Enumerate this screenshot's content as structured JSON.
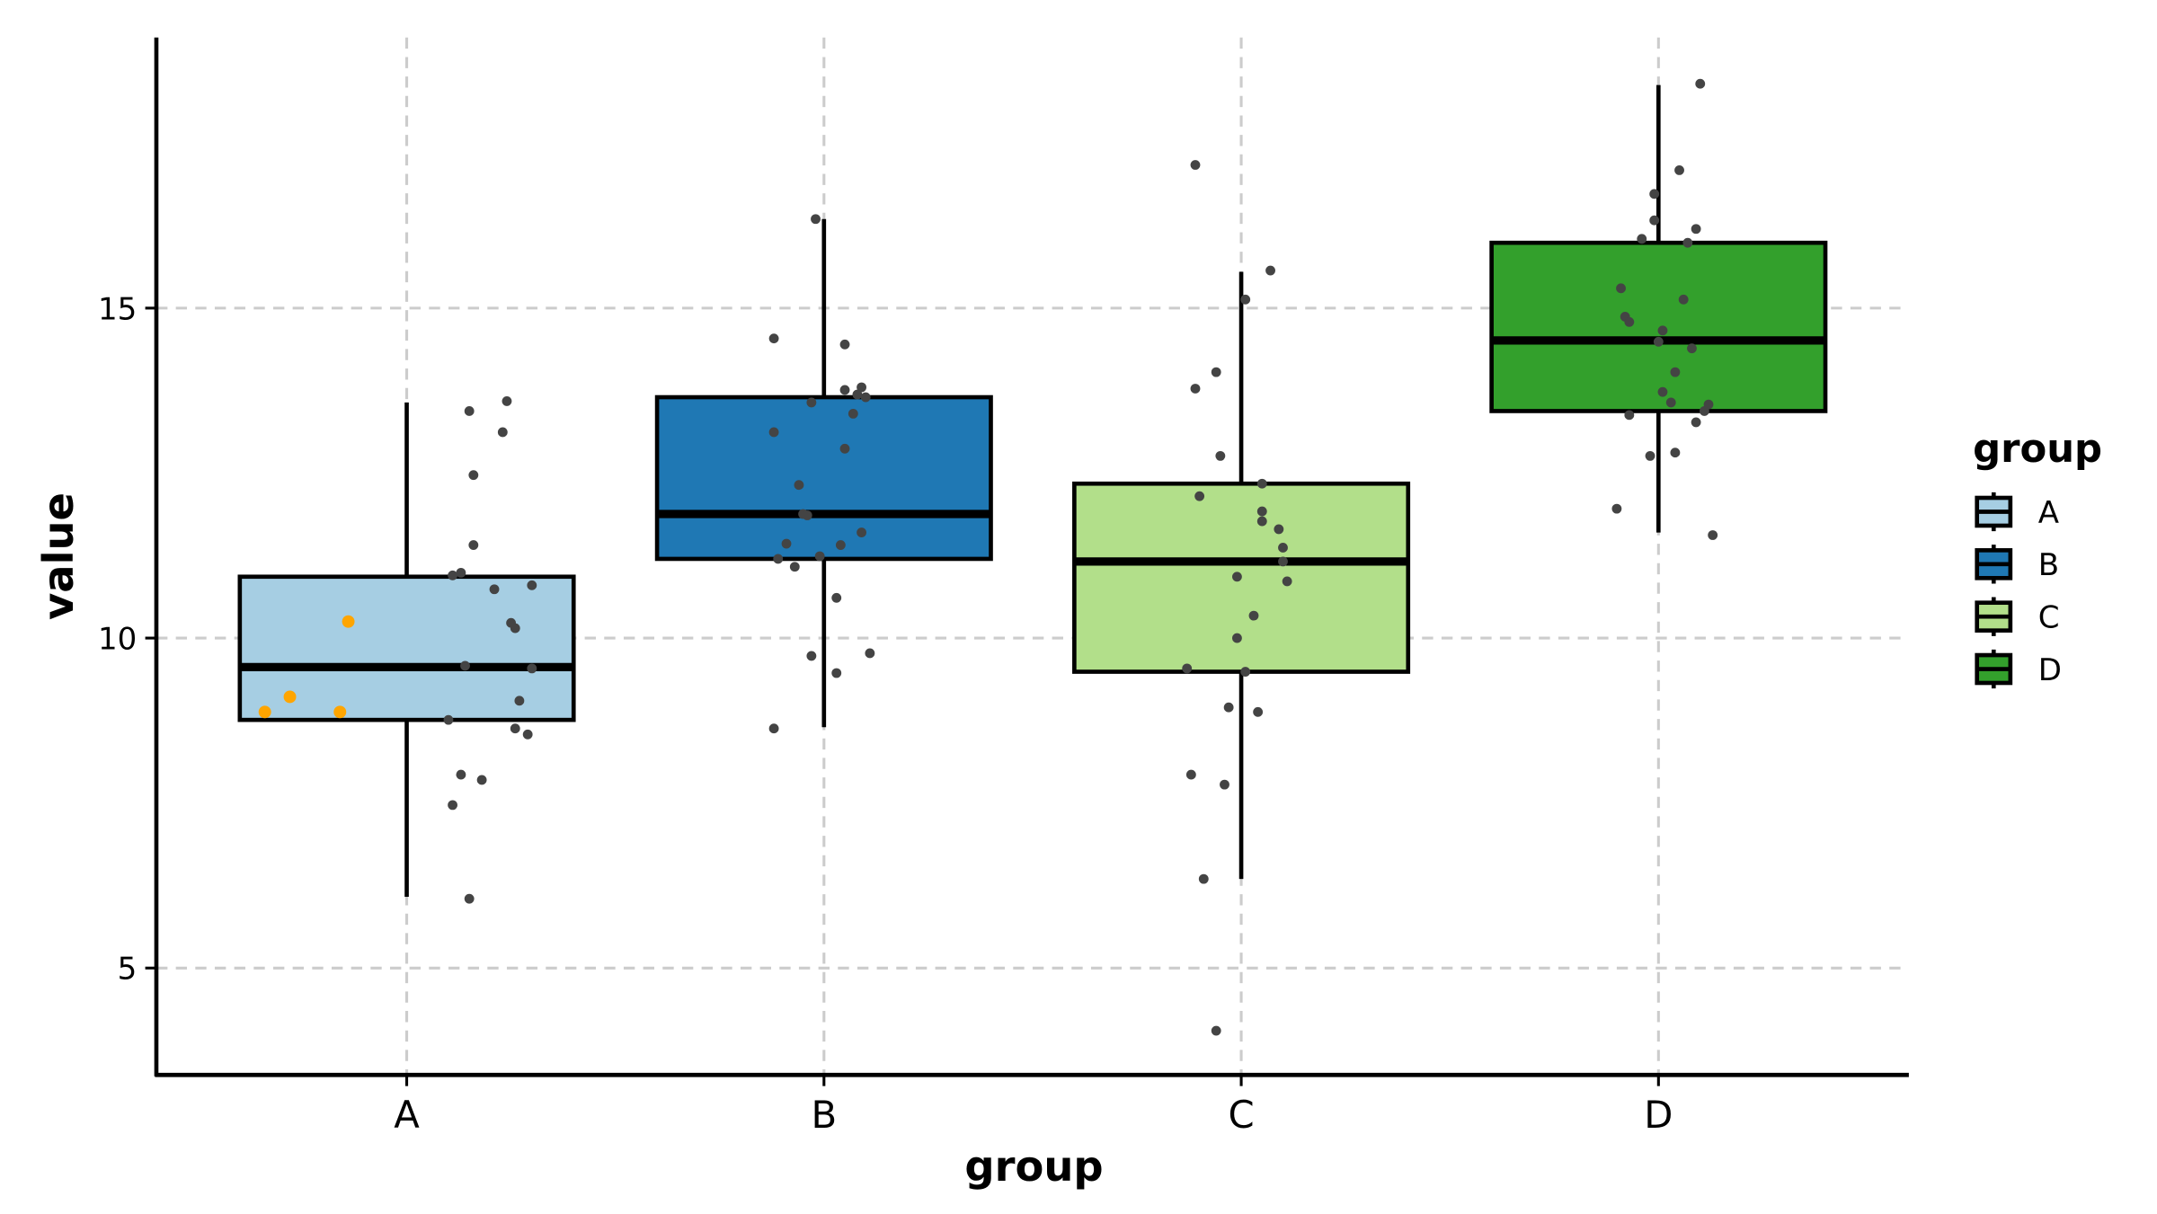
{
  "chart_data": {
    "type": "box",
    "title": "",
    "xlabel": "group",
    "ylabel": "value",
    "categories": [
      "A",
      "B",
      "C",
      "D"
    ],
    "ylim": [
      3.38,
      19.1
    ],
    "yticks": [
      5,
      10,
      15
    ],
    "grid": true,
    "legend": {
      "title": "group",
      "placement": "right",
      "entries": [
        "A",
        "B",
        "C",
        "D"
      ]
    },
    "colors": {
      "A": "#a6cee3",
      "B": "#1f78b4",
      "C": "#b2df8a",
      "D": "#33a02c",
      "points": "#444444",
      "highlight": "#ffa500"
    },
    "boxes": [
      {
        "group": "A",
        "whisker_low": 6.08,
        "q1": 8.76,
        "median": 9.56,
        "q3": 10.93,
        "whisker_high": 13.57
      },
      {
        "group": "B",
        "whisker_low": 8.65,
        "q1": 11.2,
        "median": 11.88,
        "q3": 13.65,
        "whisker_high": 16.35
      },
      {
        "group": "C",
        "whisker_low": 6.35,
        "q1": 9.49,
        "median": 11.16,
        "q3": 12.34,
        "whisker_high": 15.55
      },
      {
        "group": "D",
        "whisker_low": 11.6,
        "q1": 13.44,
        "median": 14.51,
        "q3": 15.99,
        "whisker_high": 18.38
      }
    ],
    "points": {
      "A": [
        [
          0.15,
          13.44
        ],
        [
          0.24,
          13.59
        ],
        [
          0.23,
          13.12
        ],
        [
          0.16,
          12.47
        ],
        [
          0.16,
          11.41
        ],
        [
          0.13,
          10.99
        ],
        [
          0.11,
          10.95
        ],
        [
          0.21,
          10.74
        ],
        [
          0.3,
          10.8
        ],
        [
          0.25,
          10.23
        ],
        [
          0.26,
          10.15
        ],
        [
          0.14,
          9.58
        ],
        [
          0.3,
          9.54
        ],
        [
          0.27,
          9.05
        ],
        [
          0.1,
          8.76
        ],
        [
          0.26,
          8.63
        ],
        [
          0.29,
          8.54
        ],
        [
          0.13,
          7.93
        ],
        [
          0.18,
          7.85
        ],
        [
          0.11,
          7.47
        ],
        [
          0.15,
          6.05
        ]
      ],
      "B": [
        [
          -0.02,
          16.35
        ],
        [
          -0.12,
          14.54
        ],
        [
          0.05,
          14.45
        ],
        [
          0.05,
          13.76
        ],
        [
          0.09,
          13.8
        ],
        [
          0.08,
          13.69
        ],
        [
          0.1,
          13.65
        ],
        [
          -0.03,
          13.57
        ],
        [
          0.07,
          13.4
        ],
        [
          -0.12,
          13.12
        ],
        [
          0.05,
          12.87
        ],
        [
          -0.06,
          12.32
        ],
        [
          -0.05,
          11.88
        ],
        [
          -0.04,
          11.86
        ],
        [
          0.09,
          11.6
        ],
        [
          -0.09,
          11.43
        ],
        [
          0.04,
          11.41
        ],
        [
          -0.11,
          11.2
        ],
        [
          -0.01,
          11.24
        ],
        [
          -0.07,
          11.08
        ],
        [
          0.03,
          10.61
        ],
        [
          -0.03,
          9.73
        ],
        [
          0.11,
          9.77
        ],
        [
          0.03,
          9.47
        ],
        [
          -0.12,
          8.63
        ]
      ],
      "C": [
        [
          -0.11,
          17.17
        ],
        [
          0.07,
          15.57
        ],
        [
          0.01,
          15.13
        ],
        [
          -0.06,
          14.03
        ],
        [
          -0.11,
          13.78
        ],
        [
          -0.05,
          12.76
        ],
        [
          0.05,
          12.34
        ],
        [
          -0.1,
          12.15
        ],
        [
          0.05,
          11.92
        ],
        [
          0.05,
          11.77
        ],
        [
          0.09,
          11.65
        ],
        [
          0.1,
          11.37
        ],
        [
          0.1,
          11.16
        ],
        [
          -0.01,
          10.93
        ],
        [
          0.11,
          10.86
        ],
        [
          0.03,
          10.34
        ],
        [
          -0.01,
          10.0
        ],
        [
          -0.13,
          9.54
        ],
        [
          0.01,
          9.49
        ],
        [
          -0.03,
          8.95
        ],
        [
          0.04,
          8.88
        ],
        [
          -0.12,
          7.93
        ],
        [
          -0.04,
          7.78
        ],
        [
          -0.09,
          6.35
        ],
        [
          -0.06,
          4.05
        ]
      ],
      "D": [
        [
          0.1,
          18.4
        ],
        [
          0.05,
          17.09
        ],
        [
          -0.01,
          16.73
        ],
        [
          -0.01,
          16.33
        ],
        [
          0.09,
          16.2
        ],
        [
          -0.04,
          16.05
        ],
        [
          0.07,
          15.99
        ],
        [
          -0.09,
          15.3
        ],
        [
          0.06,
          15.13
        ],
        [
          -0.08,
          14.87
        ],
        [
          -0.07,
          14.79
        ],
        [
          0.01,
          14.66
        ],
        [
          0.0,
          14.49
        ],
        [
          0.08,
          14.39
        ],
        [
          0.04,
          14.03
        ],
        [
          0.01,
          13.73
        ],
        [
          0.03,
          13.57
        ],
        [
          0.12,
          13.54
        ],
        [
          0.11,
          13.44
        ],
        [
          -0.07,
          13.38
        ],
        [
          0.09,
          13.27
        ],
        [
          0.04,
          12.81
        ],
        [
          -0.02,
          12.76
        ],
        [
          -0.1,
          11.96
        ],
        [
          0.13,
          11.56
        ]
      ]
    },
    "highlighted_points": {
      "A": [
        [
          -0.14,
          10.25
        ],
        [
          -0.28,
          9.11
        ],
        [
          -0.34,
          8.88
        ],
        [
          -0.16,
          8.88
        ]
      ]
    }
  }
}
